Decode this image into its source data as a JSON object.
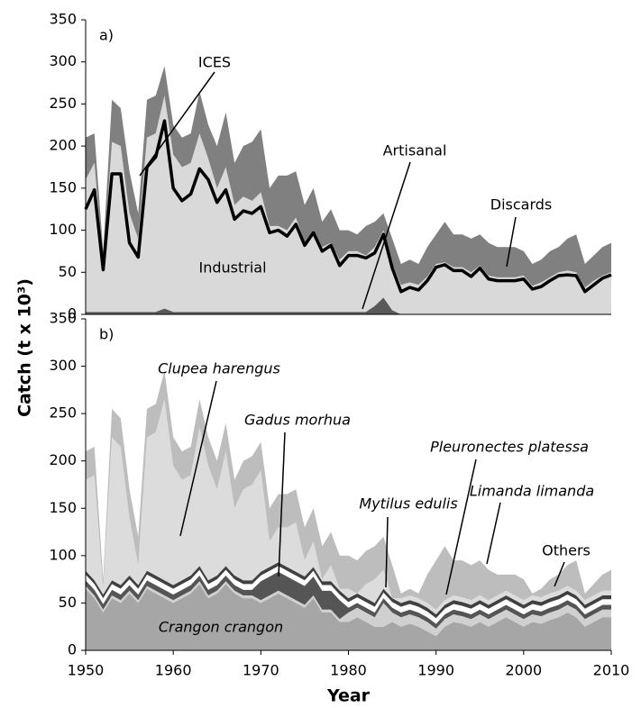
{
  "chart_data": [
    {
      "type": "stacked_area",
      "ylabel": "Catch (t x 10³)",
      "panel_label": "a)",
      "annotations": [
        "ICES",
        "Artisanal",
        "Discards",
        "Industrial"
      ],
      "x": [
        1950,
        1951,
        1952,
        1953,
        1954,
        1955,
        1956,
        1957,
        1958,
        1959,
        1960,
        1961,
        1962,
        1963,
        1964,
        1965,
        1966,
        1967,
        1968,
        1969,
        1970,
        1971,
        1972,
        1973,
        1974,
        1975,
        1976,
        1977,
        1978,
        1979,
        1980,
        1981,
        1982,
        1983,
        1984,
        1985,
        1986,
        1987,
        1988,
        1989,
        1990,
        1991,
        1992,
        1993,
        1994,
        1995,
        1996,
        1997,
        1998,
        1999,
        2000,
        2001,
        2002,
        2003,
        2004,
        2005,
        2006,
        2007,
        2008,
        2009,
        2010
      ],
      "xlim": [
        1950,
        2010
      ],
      "ylim": [
        0,
        350
      ],
      "yticks": [
        0,
        50,
        100,
        150,
        200,
        250,
        300,
        350
      ],
      "series": [
        {
          "name": "Artisanal",
          "color": "#595959",
          "values": [
            3,
            3,
            3,
            3,
            3,
            3,
            3,
            3,
            3,
            7,
            3,
            3,
            3,
            3,
            3,
            3,
            3,
            3,
            3,
            3,
            3,
            3,
            3,
            3,
            3,
            3,
            3,
            3,
            3,
            3,
            3,
            3,
            3,
            10,
            20,
            5,
            0,
            0,
            0,
            0,
            0,
            0,
            0,
            0,
            0,
            0,
            0,
            0,
            0,
            0,
            0,
            0,
            0,
            0,
            0,
            0,
            0,
            0,
            0,
            0,
            0
          ]
        },
        {
          "name": "Industrial",
          "color": "#d9d9d9",
          "values": [
            157,
            177,
            57,
            202,
            197,
            117,
            87,
            207,
            212,
            253,
            187,
            172,
            177,
            212,
            182,
            147,
            172,
            127,
            137,
            132,
            142,
            102,
            102,
            97,
            112,
            82,
            97,
            77,
            82,
            62,
            72,
            72,
            67,
            70,
            80,
            55,
            35,
            38,
            35,
            45,
            60,
            62,
            56,
            56,
            50,
            58,
            46,
            44,
            44,
            44,
            46,
            34,
            38,
            44,
            50,
            52,
            50,
            32,
            40,
            46,
            50
          ]
        },
        {
          "name": "Discards",
          "color": "#808080",
          "values": [
            50,
            35,
            15,
            50,
            45,
            50,
            30,
            45,
            45,
            35,
            35,
            35,
            35,
            50,
            40,
            50,
            65,
            50,
            60,
            70,
            75,
            45,
            60,
            65,
            55,
            45,
            50,
            30,
            40,
            35,
            25,
            20,
            35,
            30,
            20,
            30,
            25,
            27,
            25,
            35,
            35,
            48,
            39,
            39,
            40,
            37,
            39,
            36,
            36,
            36,
            29,
            26,
            27,
            31,
            30,
            38,
            45,
            28,
            30,
            34,
            35
          ]
        },
        {
          "name": "ICES",
          "color": "#000000",
          "kind": "line",
          "values": [
            125,
            148,
            53,
            167,
            167,
            85,
            68,
            175,
            187,
            230,
            150,
            135,
            143,
            173,
            160,
            133,
            148,
            113,
            123,
            120,
            128,
            97,
            100,
            93,
            107,
            82,
            97,
            75,
            82,
            58,
            70,
            70,
            67,
            73,
            95,
            55,
            27,
            32,
            29,
            40,
            56,
            59,
            52,
            52,
            45,
            55,
            42,
            40,
            40,
            40,
            42,
            30,
            33,
            40,
            46,
            47,
            46,
            27,
            35,
            43,
            47
          ]
        }
      ]
    },
    {
      "type": "stacked_area",
      "xlabel": "Year",
      "panel_label": "b)",
      "annotations": [
        "Clupea harengus",
        "Gadus morhua",
        "Mytilus edulis",
        "Pleuronectes platessa",
        "Limanda limanda",
        "Others",
        "Crangon crangon"
      ],
      "x": [
        1950,
        1951,
        1952,
        1953,
        1954,
        1955,
        1956,
        1957,
        1958,
        1959,
        1960,
        1961,
        1962,
        1963,
        1964,
        1965,
        1966,
        1967,
        1968,
        1969,
        1970,
        1971,
        1972,
        1973,
        1974,
        1975,
        1976,
        1977,
        1978,
        1979,
        1980,
        1981,
        1982,
        1983,
        1984,
        1985,
        1986,
        1987,
        1988,
        1989,
        1990,
        1991,
        1992,
        1993,
        1994,
        1995,
        1996,
        1997,
        1998,
        1999,
        2000,
        2001,
        2002,
        2003,
        2004,
        2005,
        2006,
        2007,
        2008,
        2009,
        2010
      ],
      "xlim": [
        1950,
        2010
      ],
      "xticks": [
        1950,
        1960,
        1970,
        1980,
        1990,
        2000,
        2010
      ],
      "ylim": [
        0,
        350
      ],
      "yticks": [
        0,
        50,
        100,
        150,
        200,
        250,
        300,
        350
      ],
      "series": [
        {
          "name": "Crangon crangon",
          "color": "#a6a6a6",
          "values": [
            65,
            55,
            40,
            55,
            50,
            60,
            50,
            65,
            60,
            55,
            50,
            55,
            60,
            70,
            55,
            60,
            70,
            60,
            55,
            55,
            50,
            55,
            60,
            55,
            50,
            45,
            55,
            40,
            40,
            30,
            30,
            35,
            30,
            25,
            25,
            30,
            25,
            28,
            25,
            20,
            15,
            25,
            30,
            28,
            25,
            30,
            25,
            30,
            35,
            30,
            25,
            30,
            28,
            32,
            35,
            40,
            35,
            25,
            30,
            35,
            35
          ]
        },
        {
          "name": "Mytilus edulis",
          "color": "#d0d0d0",
          "values": [
            3,
            3,
            3,
            3,
            3,
            3,
            3,
            3,
            3,
            3,
            3,
            3,
            3,
            3,
            3,
            3,
            3,
            3,
            3,
            3,
            3,
            3,
            3,
            3,
            3,
            3,
            3,
            3,
            3,
            3,
            10,
            10,
            10,
            10,
            25,
            10,
            10,
            10,
            10,
            10,
            8,
            8,
            8,
            8,
            8,
            8,
            8,
            8,
            8,
            8,
            8,
            8,
            8,
            8,
            8,
            8,
            8,
            8,
            8,
            8,
            8
          ]
        },
        {
          "name": "Gadus morhua",
          "color": "#555555",
          "values": [
            6,
            6,
            6,
            6,
            6,
            6,
            6,
            6,
            6,
            6,
            6,
            6,
            6,
            6,
            6,
            6,
            6,
            6,
            6,
            6,
            20,
            20,
            20,
            20,
            20,
            20,
            20,
            20,
            20,
            20,
            5,
            5,
            5,
            5,
            5,
            5,
            5,
            5,
            5,
            5,
            5,
            5,
            5,
            5,
            5,
            5,
            5,
            5,
            5,
            5,
            5,
            5,
            5,
            5,
            5,
            5,
            5,
            5,
            5,
            5,
            5
          ]
        },
        {
          "name": "Pleuronectes platessa",
          "color": "#ffffff",
          "values": [
            6,
            6,
            6,
            6,
            6,
            6,
            6,
            6,
            6,
            6,
            6,
            6,
            6,
            6,
            6,
            6,
            6,
            6,
            6,
            6,
            6,
            6,
            6,
            6,
            6,
            6,
            6,
            6,
            6,
            6,
            6,
            6,
            6,
            6,
            6,
            6,
            6,
            6,
            6,
            6,
            6,
            6,
            6,
            6,
            6,
            6,
            6,
            6,
            6,
            6,
            6,
            6,
            6,
            6,
            6,
            6,
            6,
            6,
            6,
            6,
            6
          ]
        },
        {
          "name": "Limanda limanda",
          "color": "#404040",
          "values": [
            4,
            4,
            4,
            4,
            4,
            4,
            4,
            4,
            4,
            4,
            4,
            4,
            4,
            4,
            4,
            4,
            4,
            4,
            4,
            4,
            4,
            4,
            4,
            4,
            4,
            4,
            4,
            4,
            4,
            4,
            4,
            4,
            4,
            4,
            4,
            4,
            4,
            4,
            4,
            4,
            4,
            4,
            4,
            4,
            4,
            4,
            4,
            4,
            4,
            4,
            4,
            4,
            4,
            4,
            4,
            4,
            4,
            4,
            4,
            4,
            4
          ]
        },
        {
          "name": "Clupea harengus",
          "color": "#dcdcdc",
          "values": [
            96,
            111,
            6,
            151,
            146,
            61,
            21,
            141,
            151,
            191,
            126,
            106,
            106,
            146,
            121,
            91,
            121,
            71,
            96,
            101,
            107,
            27,
            37,
            42,
            52,
            17,
            27,
            2,
            17,
            2,
            10,
            0,
            15,
            25,
            20,
            0,
            5,
            5,
            5,
            5,
            5,
            5,
            5,
            5,
            5,
            5,
            5,
            5,
            5,
            5,
            5,
            5,
            5,
            5,
            5,
            5,
            5,
            5,
            5,
            5,
            5
          ]
        },
        {
          "name": "Others",
          "color": "#bdbdbd",
          "values": [
            30,
            30,
            10,
            30,
            30,
            30,
            30,
            30,
            30,
            30,
            30,
            30,
            30,
            30,
            30,
            30,
            30,
            30,
            30,
            30,
            30,
            35,
            35,
            35,
            35,
            35,
            35,
            35,
            35,
            35,
            35,
            35,
            35,
            35,
            35,
            35,
            5,
            7,
            5,
            30,
            52,
            57,
            37,
            39,
            37,
            37,
            32,
            22,
            17,
            22,
            22,
            2,
            9,
            15,
            17,
            22,
            32,
            7,
            12,
            17,
            22
          ]
        }
      ]
    }
  ]
}
